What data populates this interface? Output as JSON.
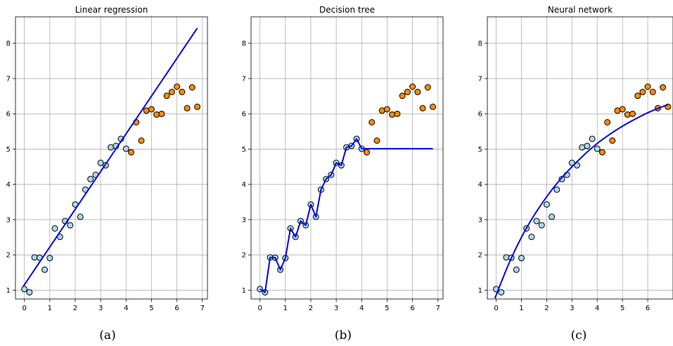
{
  "figure": {
    "captions": [
      "(a)",
      "(b)",
      "(c)"
    ]
  },
  "colors": {
    "train_point_fill": "#add8e6",
    "test_point_fill": "#ff8c00",
    "point_edge": "#000000",
    "fit_line": "#0000ee",
    "grid": "#b0b0b0"
  },
  "chart_data": [
    {
      "type": "scatter",
      "title": "Linear regression",
      "xlim": [
        -0.35,
        7.2
      ],
      "ylim": [
        0.75,
        8.75
      ],
      "xticks": [
        0,
        1,
        2,
        3,
        4,
        5,
        6,
        7
      ],
      "yticks": [
        1,
        2,
        3,
        4,
        5,
        6,
        7,
        8
      ],
      "grid": true,
      "series": [
        {
          "kind": "scatter",
          "role": "train",
          "x": [
            0.0,
            0.2,
            0.4,
            0.6,
            0.8,
            1.0,
            1.2,
            1.4,
            1.6,
            1.8,
            2.0,
            2.2,
            2.4,
            2.6,
            2.8,
            3.0,
            3.2,
            3.4,
            3.6,
            3.8,
            4.0
          ],
          "y": [
            1.03,
            0.94,
            1.93,
            1.92,
            1.58,
            1.91,
            2.75,
            2.51,
            2.96,
            2.84,
            3.43,
            3.08,
            3.85,
            4.15,
            4.27,
            4.61,
            4.54,
            5.05,
            5.09,
            5.29,
            5.01
          ]
        },
        {
          "kind": "scatter",
          "role": "test",
          "x": [
            4.2,
            4.4,
            4.6,
            4.8,
            5.0,
            5.2,
            5.4,
            5.6,
            5.8,
            6.0,
            6.2,
            6.4,
            6.6,
            6.8
          ],
          "y": [
            4.91,
            5.76,
            5.24,
            6.09,
            6.13,
            5.98,
            6.0,
            6.51,
            6.62,
            6.77,
            6.62,
            6.16,
            6.75,
            6.2
          ]
        },
        {
          "kind": "line",
          "role": "fit",
          "x": [
            -0.05,
            6.8
          ],
          "y": [
            1.1,
            8.43
          ]
        }
      ]
    },
    {
      "type": "scatter",
      "title": "Decision tree",
      "xlim": [
        -0.35,
        7.2
      ],
      "ylim": [
        0.75,
        8.75
      ],
      "xticks": [
        0,
        1,
        2,
        3,
        4,
        5,
        6,
        7
      ],
      "yticks": [
        1,
        2,
        3,
        4,
        5,
        6,
        7,
        8
      ],
      "grid": true,
      "series": [
        {
          "kind": "scatter",
          "role": "train",
          "x": [
            0.0,
            0.2,
            0.4,
            0.6,
            0.8,
            1.0,
            1.2,
            1.4,
            1.6,
            1.8,
            2.0,
            2.2,
            2.4,
            2.6,
            2.8,
            3.0,
            3.2,
            3.4,
            3.6,
            3.8,
            4.0
          ],
          "y": [
            1.03,
            0.94,
            1.93,
            1.92,
            1.58,
            1.91,
            2.75,
            2.51,
            2.96,
            2.84,
            3.43,
            3.08,
            3.85,
            4.15,
            4.27,
            4.61,
            4.54,
            5.05,
            5.09,
            5.29,
            5.01
          ]
        },
        {
          "kind": "scatter",
          "role": "test",
          "x": [
            4.2,
            4.4,
            4.6,
            4.8,
            5.0,
            5.2,
            5.4,
            5.6,
            5.8,
            6.0,
            6.2,
            6.4,
            6.6,
            6.8
          ],
          "y": [
            4.91,
            5.76,
            5.24,
            6.09,
            6.13,
            5.98,
            6.0,
            6.51,
            6.62,
            6.77,
            6.62,
            6.16,
            6.75,
            6.2
          ]
        },
        {
          "kind": "line",
          "role": "fit",
          "x": [
            0.0,
            0.2,
            0.4,
            0.6,
            0.8,
            1.0,
            1.2,
            1.4,
            1.6,
            1.8,
            2.0,
            2.2,
            2.4,
            2.6,
            2.8,
            3.0,
            3.2,
            3.4,
            3.6,
            3.8,
            4.0,
            6.8
          ],
          "y": [
            1.03,
            0.94,
            1.93,
            1.92,
            1.58,
            1.91,
            2.75,
            2.51,
            2.96,
            2.84,
            3.43,
            3.08,
            3.85,
            4.15,
            4.27,
            4.61,
            4.54,
            5.05,
            5.09,
            5.29,
            5.01,
            5.01
          ]
        }
      ]
    },
    {
      "type": "scatter",
      "title": "Neural network",
      "xlim": [
        -0.35,
        7.0
      ],
      "ylim": [
        0.75,
        8.75
      ],
      "xticks": [
        0,
        1,
        2,
        3,
        4,
        5,
        6
      ],
      "yticks": [
        1,
        2,
        3,
        4,
        5,
        6,
        7,
        8
      ],
      "grid": true,
      "series": [
        {
          "kind": "scatter",
          "role": "train",
          "x": [
            0.0,
            0.2,
            0.4,
            0.6,
            0.8,
            1.0,
            1.2,
            1.4,
            1.6,
            1.8,
            2.0,
            2.2,
            2.4,
            2.6,
            2.8,
            3.0,
            3.2,
            3.4,
            3.6,
            3.8,
            4.0
          ],
          "y": [
            1.03,
            0.94,
            1.93,
            1.92,
            1.58,
            1.91,
            2.75,
            2.51,
            2.96,
            2.84,
            3.43,
            3.08,
            3.85,
            4.15,
            4.27,
            4.61,
            4.54,
            5.05,
            5.09,
            5.29,
            5.01
          ]
        },
        {
          "kind": "scatter",
          "role": "test",
          "x": [
            4.2,
            4.4,
            4.6,
            4.8,
            5.0,
            5.2,
            5.4,
            5.6,
            5.8,
            6.0,
            6.2,
            6.4,
            6.6,
            6.8
          ],
          "y": [
            4.91,
            5.76,
            5.24,
            6.09,
            6.13,
            5.98,
            6.0,
            6.51,
            6.62,
            6.77,
            6.62,
            6.16,
            6.75,
            6.2
          ]
        },
        {
          "kind": "line",
          "role": "fit",
          "x": [
            -0.05,
            0.5,
            1.0,
            1.5,
            2.0,
            2.5,
            3.0,
            3.5,
            4.0,
            4.5,
            5.0,
            5.5,
            6.0,
            6.5,
            6.8
          ],
          "y": [
            0.77,
            1.75,
            2.5,
            3.12,
            3.65,
            4.11,
            4.5,
            4.85,
            5.16,
            5.42,
            5.65,
            5.85,
            6.03,
            6.18,
            6.26
          ]
        }
      ]
    }
  ]
}
